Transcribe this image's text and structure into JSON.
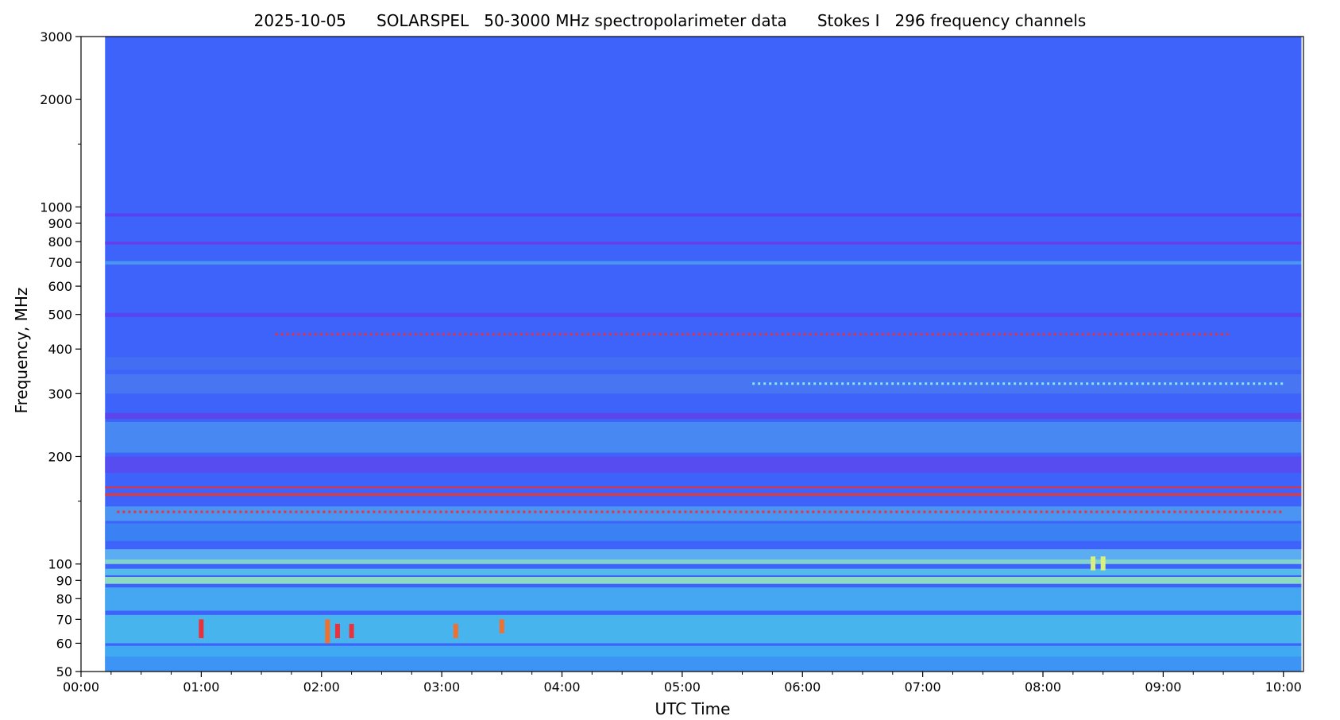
{
  "chart_data": {
    "type": "heatmap",
    "title": "2025-10-05      SOLARSPEL   50-3000 MHz spectropolarimeter data      Stokes I   296 frequency channels",
    "xlabel": "UTC Time",
    "ylabel": "Frequency, MHz",
    "x_scale": "time",
    "y_scale": "log",
    "xlim": [
      "00:00",
      "10:10"
    ],
    "ylim": [
      50,
      3000
    ],
    "data_start_time": "00:12",
    "data_end_time": "10:09",
    "x_ticks": [
      "00:00",
      "01:00",
      "02:00",
      "03:00",
      "04:00",
      "05:00",
      "06:00",
      "07:00",
      "08:00",
      "09:00",
      "10:00"
    ],
    "y_ticks": [
      50,
      60,
      70,
      80,
      90,
      100,
      200,
      300,
      400,
      500,
      600,
      700,
      800,
      900,
      1000,
      2000,
      3000
    ],
    "y_tick_labels": [
      "50",
      "60",
      "70",
      "80",
      "90",
      "100",
      "200",
      "300",
      "400",
      "500",
      "600",
      "700",
      "800",
      "900",
      "1000",
      "2000",
      "3000"
    ],
    "y_minor_ticks": [
      150,
      1500
    ],
    "background_color": "#3e63fa",
    "colormap": "rainbow",
    "bands": [
      {
        "f_low": 940,
        "f_high": 960,
        "color": "#5a3cf0"
      },
      {
        "f_low": 785,
        "f_high": 800,
        "color": "#6a3ae8"
      },
      {
        "f_low": 690,
        "f_high": 705,
        "color": "#4ba0f0"
      },
      {
        "f_low": 492,
        "f_high": 505,
        "color": "#5a40ee"
      },
      {
        "f_low": 350,
        "f_high": 380,
        "color": "#4470f2"
      },
      {
        "f_low": 300,
        "f_high": 340,
        "color": "#4a78f0"
      },
      {
        "f_low": 255,
        "f_high": 265,
        "color": "#6040e8"
      },
      {
        "f_low": 205,
        "f_high": 250,
        "color": "#4a8ef0"
      },
      {
        "f_low": 180,
        "f_high": 200,
        "color": "#5c48ec"
      },
      {
        "f_low": 163,
        "f_high": 165,
        "color": "#e8323c"
      },
      {
        "f_low": 155,
        "f_high": 158,
        "color": "#e23a3a"
      },
      {
        "f_low": 132,
        "f_high": 145,
        "color": "#4e9cf0"
      },
      {
        "f_low": 116,
        "f_high": 130,
        "color": "#3a86f2"
      },
      {
        "f_low": 103,
        "f_high": 110,
        "color": "#62b8ee"
      },
      {
        "f_low": 100,
        "f_high": 103,
        "color": "#8ee6c8"
      },
      {
        "f_low": 93,
        "f_high": 97,
        "color": "#58c8e8"
      },
      {
        "f_low": 88,
        "f_high": 92,
        "color": "#9af0b8"
      },
      {
        "f_low": 74,
        "f_high": 86,
        "color": "#46b2ee"
      },
      {
        "f_low": 60,
        "f_high": 72,
        "color": "#4ac2ea"
      },
      {
        "f_low": 55,
        "f_high": 59,
        "color": "#40b6ee"
      },
      {
        "f_low": 50,
        "f_high": 55,
        "color": "#3e9cf2"
      }
    ],
    "bursts": [
      {
        "time": "01:00",
        "f_low": 62,
        "f_high": 70,
        "color": "#e8323c"
      },
      {
        "time": "02:03",
        "f_low": 60,
        "f_high": 70,
        "color": "#f07030"
      },
      {
        "time": "02:08",
        "f_low": 62,
        "f_high": 68,
        "color": "#e8323c"
      },
      {
        "time": "02:15",
        "f_low": 62,
        "f_high": 68,
        "color": "#e8323c"
      },
      {
        "time": "03:07",
        "f_low": 62,
        "f_high": 68,
        "color": "#f07030"
      },
      {
        "time": "03:30",
        "f_low": 64,
        "f_high": 70,
        "color": "#f07030"
      },
      {
        "time": "08:25",
        "f_low": 96,
        "f_high": 105,
        "color": "#d8f080"
      },
      {
        "time": "08:30",
        "f_low": 96,
        "f_high": 105,
        "color": "#d8f080"
      }
    ],
    "dotted_lines": [
      {
        "f": 440,
        "t_start": "01:37",
        "t_end": "09:33",
        "color": "#e8323c"
      },
      {
        "f": 320,
        "t_start": "05:35",
        "t_end": "10:00",
        "color": "#80e8ff"
      },
      {
        "f": 140,
        "t_start": "00:18",
        "t_end": "10:00",
        "color": "#e8323c"
      }
    ]
  }
}
